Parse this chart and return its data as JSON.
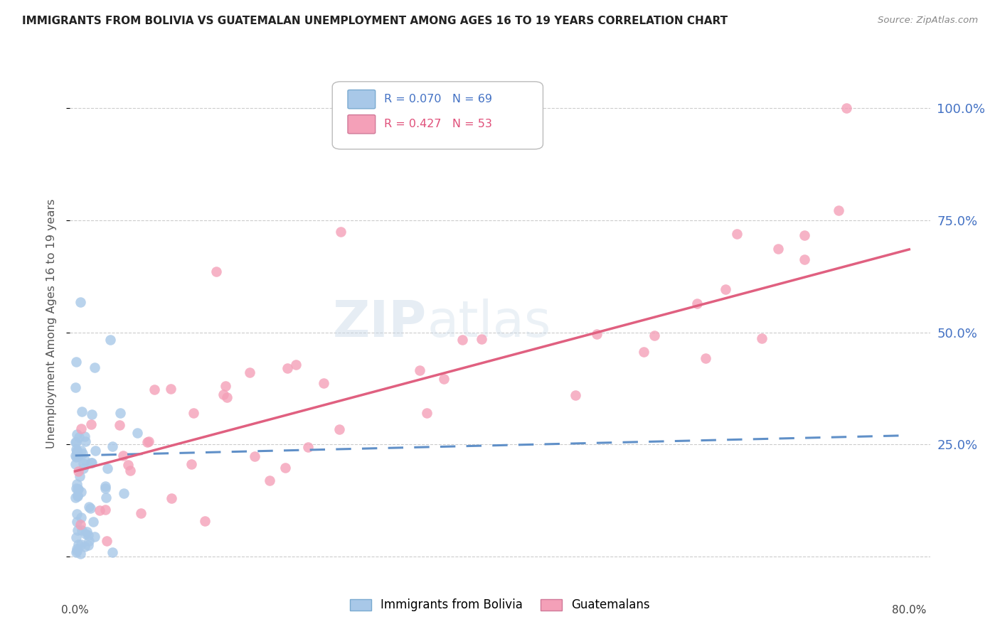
{
  "title": "IMMIGRANTS FROM BOLIVIA VS GUATEMALAN UNEMPLOYMENT AMONG AGES 16 TO 19 YEARS CORRELATION CHART",
  "source": "Source: ZipAtlas.com",
  "ylabel": "Unemployment Among Ages 16 to 19 years",
  "right_ytick_labels": [
    "",
    "25.0%",
    "50.0%",
    "75.0%",
    "100.0%"
  ],
  "right_ytick_positions": [
    0.0,
    0.25,
    0.5,
    0.75,
    1.0
  ],
  "xlim": [
    -0.005,
    0.82
  ],
  "ylim": [
    -0.06,
    1.1
  ],
  "legend_label1": "Immigrants from Bolivia",
  "legend_label2": "Guatemalans",
  "color_blue": "#a8c8e8",
  "color_pink": "#f4a0b8",
  "color_blue_text": "#4472c4",
  "color_pink_text": "#e0507a",
  "color_line_blue": "#6090c8",
  "color_line_pink": "#e06080",
  "watermark_zip": "ZIP",
  "watermark_atlas": "atlas",
  "background_color": "#ffffff",
  "grid_color": "#cccccc",
  "bolivia_trend_x": [
    0.0,
    0.8
  ],
  "bolivia_trend_y": [
    0.225,
    0.27
  ],
  "guatemala_trend_x": [
    0.0,
    0.8
  ],
  "guatemala_trend_y": [
    0.19,
    0.685
  ]
}
